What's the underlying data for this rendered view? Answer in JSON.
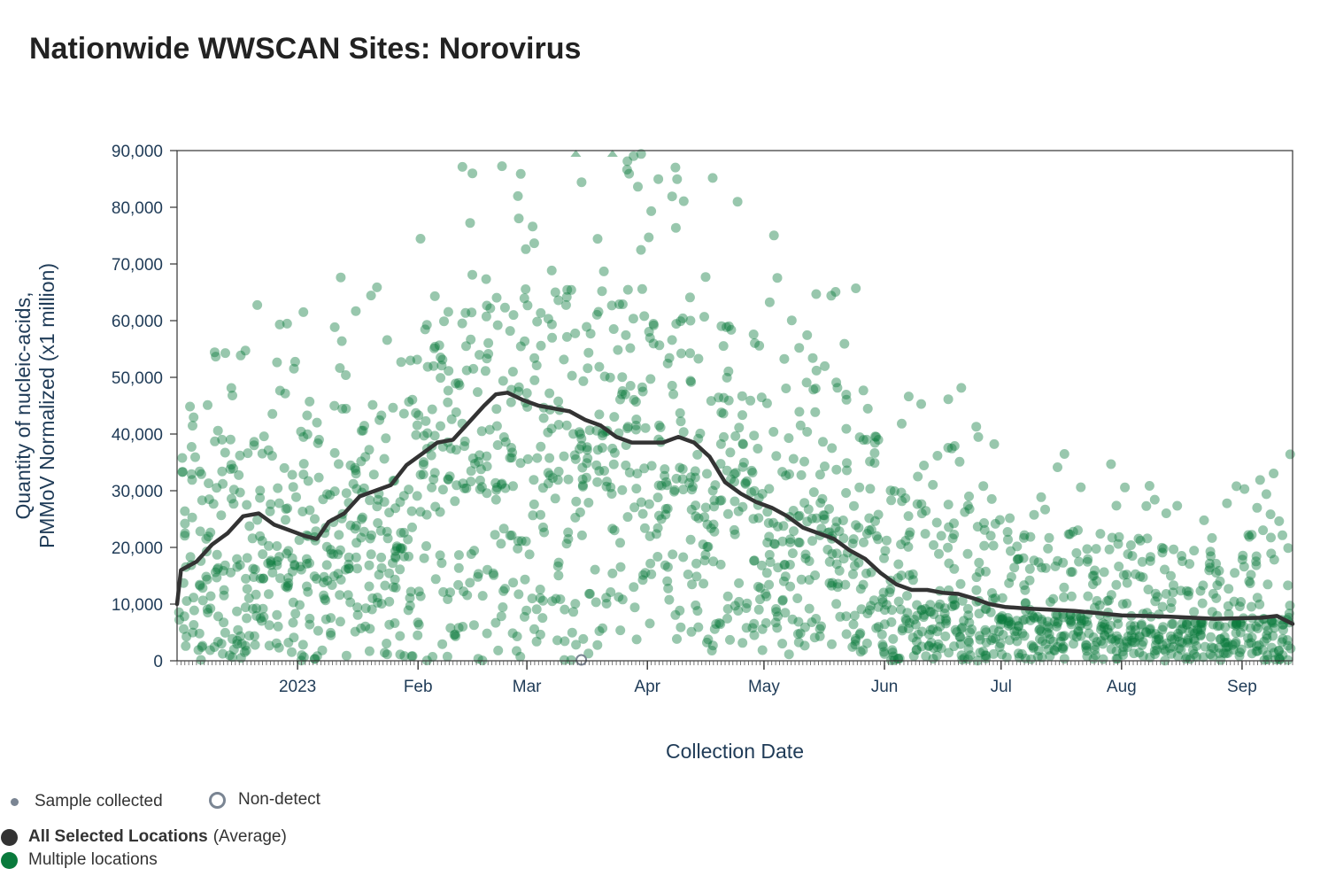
{
  "title": "Nationwide WWSCAN Sites: Norovirus",
  "chart_data": {
    "type": "scatter",
    "title": "Nationwide WWSCAN Sites: Norovirus",
    "xlabel": "Collection Date",
    "ylabel_line1": "Quantity of nucleic-acids,",
    "ylabel_line2": "PMMoV Normalized (x1 million)",
    "ylim": [
      0,
      90000
    ],
    "xlim": [
      "2022-12-01",
      "2023-09-14"
    ],
    "y_ticks": [
      {
        "value": 0,
        "label": "0"
      },
      {
        "value": 10000,
        "label": "10,000"
      },
      {
        "value": 20000,
        "label": "20,000"
      },
      {
        "value": 30000,
        "label": "30,000"
      },
      {
        "value": 40000,
        "label": "40,000"
      },
      {
        "value": 50000,
        "label": "50,000"
      },
      {
        "value": 60000,
        "label": "60,000"
      },
      {
        "value": 70000,
        "label": "70,000"
      },
      {
        "value": 80000,
        "label": "80,000"
      },
      {
        "value": 90000,
        "label": "90,000"
      }
    ],
    "x_ticks": [
      {
        "date": "2023-01-01",
        "label": "2023"
      },
      {
        "date": "2023-02-01",
        "label": "Feb"
      },
      {
        "date": "2023-03-01",
        "label": "Mar"
      },
      {
        "date": "2023-04-01",
        "label": "Apr"
      },
      {
        "date": "2023-05-01",
        "label": "May"
      },
      {
        "date": "2023-06-01",
        "label": "Jun"
      },
      {
        "date": "2023-07-01",
        "label": "Jul"
      },
      {
        "date": "2023-08-01",
        "label": "Aug"
      },
      {
        "date": "2023-09-01",
        "label": "Sep"
      }
    ],
    "grid": false,
    "colors": {
      "samples": "#0a7a3c",
      "average_line": "#333333",
      "axis_text": "#1f3b57",
      "legend_grey": "#7a8593"
    },
    "series": [
      {
        "name": "All Selected Locations",
        "type": "line",
        "points": [
          [
            "2022-12-01",
            10000
          ],
          [
            "2022-12-02",
            16000
          ],
          [
            "2022-12-06",
            17500
          ],
          [
            "2022-12-10",
            20500
          ],
          [
            "2022-12-14",
            22500
          ],
          [
            "2022-12-18",
            25500
          ],
          [
            "2022-12-22",
            26000
          ],
          [
            "2022-12-26",
            24000
          ],
          [
            "2022-12-30",
            23000
          ],
          [
            "2023-01-03",
            22000
          ],
          [
            "2023-01-06",
            21500
          ],
          [
            "2023-01-09",
            24500
          ],
          [
            "2023-01-13",
            26000
          ],
          [
            "2023-01-17",
            29000
          ],
          [
            "2023-01-21",
            30000
          ],
          [
            "2023-01-25",
            31000
          ],
          [
            "2023-01-29",
            34500
          ],
          [
            "2023-02-02",
            36500
          ],
          [
            "2023-02-06",
            38500
          ],
          [
            "2023-02-10",
            39000
          ],
          [
            "2023-02-14",
            42000
          ],
          [
            "2023-02-18",
            45000
          ],
          [
            "2023-02-21",
            47000
          ],
          [
            "2023-02-24",
            47300
          ],
          [
            "2023-02-28",
            46000
          ],
          [
            "2023-03-04",
            45000
          ],
          [
            "2023-03-08",
            44500
          ],
          [
            "2023-03-12",
            44000
          ],
          [
            "2023-03-16",
            42500
          ],
          [
            "2023-03-20",
            41500
          ],
          [
            "2023-03-24",
            39500
          ],
          [
            "2023-03-28",
            38500
          ],
          [
            "2023-04-01",
            38500
          ],
          [
            "2023-04-05",
            38500
          ],
          [
            "2023-04-09",
            39500
          ],
          [
            "2023-04-13",
            38500
          ],
          [
            "2023-04-17",
            36000
          ],
          [
            "2023-04-21",
            31500
          ],
          [
            "2023-04-25",
            29500
          ],
          [
            "2023-04-29",
            28000
          ],
          [
            "2023-05-03",
            27000
          ],
          [
            "2023-05-07",
            25500
          ],
          [
            "2023-05-11",
            23500
          ],
          [
            "2023-05-15",
            22500
          ],
          [
            "2023-05-19",
            21500
          ],
          [
            "2023-05-23",
            19500
          ],
          [
            "2023-05-27",
            18000
          ],
          [
            "2023-05-31",
            15500
          ],
          [
            "2023-06-04",
            13500
          ],
          [
            "2023-06-08",
            12500
          ],
          [
            "2023-06-12",
            12500
          ],
          [
            "2023-06-16",
            12000
          ],
          [
            "2023-06-20",
            11800
          ],
          [
            "2023-06-24",
            11000
          ],
          [
            "2023-06-28",
            10000
          ],
          [
            "2023-07-02",
            9500
          ],
          [
            "2023-07-08",
            9200
          ],
          [
            "2023-07-14",
            9000
          ],
          [
            "2023-07-20",
            8800
          ],
          [
            "2023-07-26",
            8400
          ],
          [
            "2023-08-01",
            8000
          ],
          [
            "2023-08-07",
            7900
          ],
          [
            "2023-08-13",
            7800
          ],
          [
            "2023-08-19",
            7600
          ],
          [
            "2023-08-25",
            7400
          ],
          [
            "2023-08-31",
            7500
          ],
          [
            "2023-09-06",
            7600
          ],
          [
            "2023-09-10",
            7900
          ],
          [
            "2023-09-14",
            6500
          ]
        ]
      },
      {
        "name": "Multiple locations",
        "type": "scatter",
        "summary_by_month": [
          {
            "month": "2022-12",
            "median": 14000,
            "upper": 60000
          },
          {
            "month": "2023-01",
            "median": 18000,
            "upper": 65000
          },
          {
            "month": "2023-02",
            "median": 30000,
            "upper": 85000
          },
          {
            "month": "2023-03",
            "median": 30000,
            "upper": 90000
          },
          {
            "month": "2023-04",
            "median": 25000,
            "upper": 85000
          },
          {
            "month": "2023-05",
            "median": 18000,
            "upper": 70000
          },
          {
            "month": "2023-06",
            "median": 8000,
            "upper": 45000
          },
          {
            "month": "2023-07",
            "median": 6000,
            "upper": 35000
          },
          {
            "month": "2023-08",
            "median": 5000,
            "upper": 30000
          },
          {
            "month": "2023-09",
            "median": 5500,
            "upper": 35000
          }
        ]
      }
    ]
  },
  "legend": {
    "sample_collected": "Sample collected",
    "non_detect": "Non-detect",
    "average_label_bold": "All Selected Locations",
    "average_label_suffix": "(Average)",
    "multiple_locations": "Multiple locations"
  }
}
